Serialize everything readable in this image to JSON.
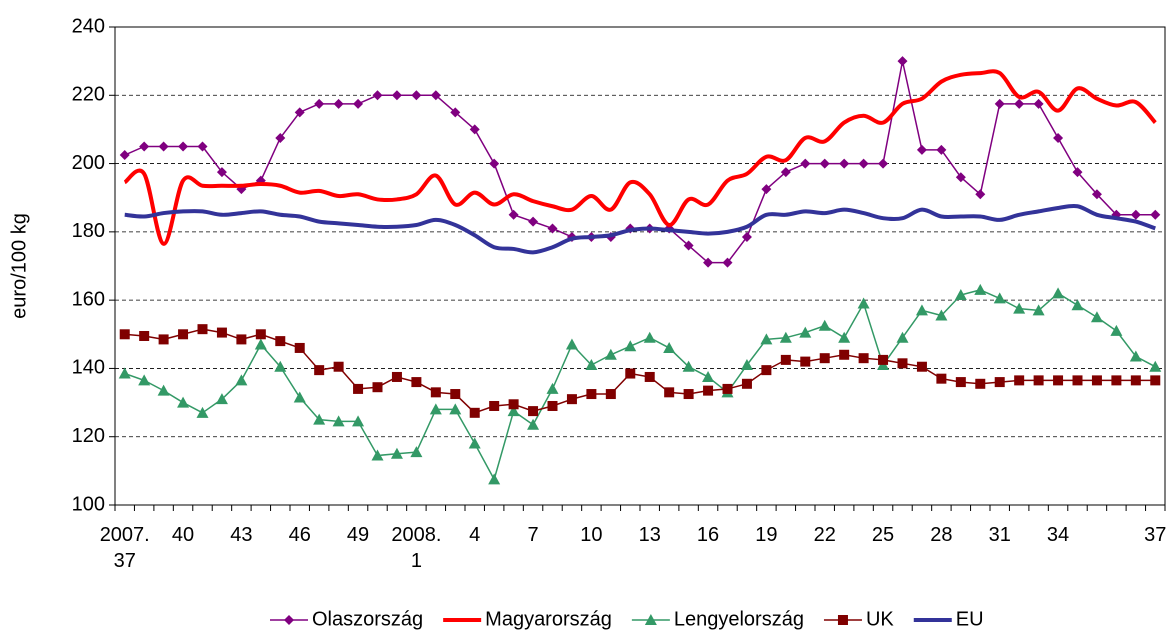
{
  "chart_data": {
    "type": "line",
    "y_label": "euro/100 kg",
    "categories": [
      "2007. 37",
      null,
      null,
      "40",
      null,
      null,
      "43",
      null,
      null,
      "46",
      null,
      null,
      "49",
      null,
      null,
      "2008. 1",
      null,
      null,
      "4",
      null,
      null,
      "7",
      null,
      null,
      "10",
      null,
      null,
      "13",
      null,
      null,
      "16",
      null,
      null,
      "19",
      null,
      null,
      "22",
      null,
      null,
      "25",
      null,
      null,
      "28",
      null,
      null,
      "31",
      null,
      null,
      "34",
      null,
      null,
      null,
      null,
      "37"
    ],
    "ylim": [
      100,
      240
    ],
    "yticks": [
      100,
      120,
      140,
      160,
      180,
      200,
      220,
      240
    ],
    "grid": true,
    "legend": "bottom",
    "series": [
      {
        "name": "Olaszország",
        "color": "#800080",
        "marker": "diamond",
        "smooth": false,
        "width": 1.5,
        "values": [
          202.5,
          205,
          205,
          205,
          205,
          197.5,
          192.5,
          195,
          207.5,
          215,
          217.5,
          217.5,
          217.5,
          220,
          220,
          220,
          220,
          215,
          210,
          200,
          185,
          183,
          181,
          178.5,
          178.5,
          178.5,
          181,
          181,
          181,
          176,
          171,
          171,
          178.5,
          192.5,
          197.5,
          200,
          200,
          200,
          200,
          200,
          230,
          204,
          204,
          196,
          191,
          217.5,
          217.5,
          217.5,
          207.5,
          197.5,
          191,
          185,
          185,
          185
        ]
      },
      {
        "name": "Magyarország",
        "color": "#ff0000",
        "marker": "none",
        "smooth": true,
        "width": 4,
        "values": [
          194.5,
          197,
          176.5,
          195,
          193.5,
          193.5,
          193.5,
          194,
          193.5,
          191.5,
          192,
          190.5,
          191,
          189.5,
          189.5,
          191,
          196.5,
          188,
          191.5,
          188,
          191,
          189,
          187.5,
          186.5,
          190.5,
          186.5,
          194.5,
          191,
          182,
          189.5,
          188,
          195,
          197,
          202,
          201,
          207.5,
          206.5,
          212,
          214,
          212,
          217.5,
          219,
          224,
          226,
          226.5,
          226.5,
          219.5,
          221,
          215.5,
          222,
          219,
          217,
          218,
          212
        ]
      },
      {
        "name": "Lengyelország",
        "color": "#339966",
        "marker": "triangle",
        "smooth": false,
        "width": 1.5,
        "values": [
          138.5,
          136.5,
          133.5,
          130,
          127,
          131,
          136.5,
          147,
          140.5,
          131.5,
          125,
          124.5,
          124.5,
          114.5,
          115,
          115.5,
          128,
          128,
          118,
          107.5,
          127.5,
          123.5,
          134,
          147,
          141,
          144,
          146.5,
          149,
          146,
          140.5,
          137.5,
          133,
          141,
          148.5,
          149,
          150.5,
          152.5,
          149,
          159,
          141,
          149,
          157,
          155.5,
          161.5,
          163,
          160.5,
          157.5,
          157,
          162,
          158.5,
          155,
          151,
          143.5,
          140.5
        ]
      },
      {
        "name": "UK",
        "color": "#800000",
        "marker": "square",
        "smooth": false,
        "width": 1.5,
        "values": [
          150,
          149.5,
          148.5,
          150,
          151.5,
          150.5,
          148.5,
          150,
          148,
          146,
          139.5,
          140.5,
          134,
          134.5,
          137.5,
          136,
          133,
          132.5,
          127,
          129,
          129.5,
          127.5,
          129,
          131,
          132.5,
          132.5,
          138.5,
          137.5,
          133,
          132.5,
          133.5,
          134,
          135.5,
          139.5,
          142.5,
          142,
          143,
          144,
          143,
          142.5,
          141.5,
          140.5,
          137,
          136,
          135.5,
          136,
          136.5,
          136.5,
          136.5,
          136.5,
          136.5,
          136.5,
          136.5,
          136.5
        ]
      },
      {
        "name": "EU",
        "color": "#333399",
        "marker": "none",
        "smooth": true,
        "width": 4,
        "values": [
          185,
          184.5,
          185.5,
          186,
          186,
          185,
          185.5,
          186,
          185,
          184.5,
          183,
          182.5,
          182,
          181.5,
          181.5,
          182,
          183.5,
          182,
          179,
          175.5,
          175,
          174,
          175.5,
          178,
          178.5,
          179,
          180.5,
          181,
          180.5,
          180,
          179.5,
          180,
          181.5,
          185,
          185,
          186,
          185.5,
          186.5,
          185.5,
          184,
          184,
          186.5,
          184.5,
          184.5,
          184.5,
          183.5,
          185,
          186,
          187,
          187.5,
          185,
          184,
          183,
          181
        ]
      }
    ]
  }
}
